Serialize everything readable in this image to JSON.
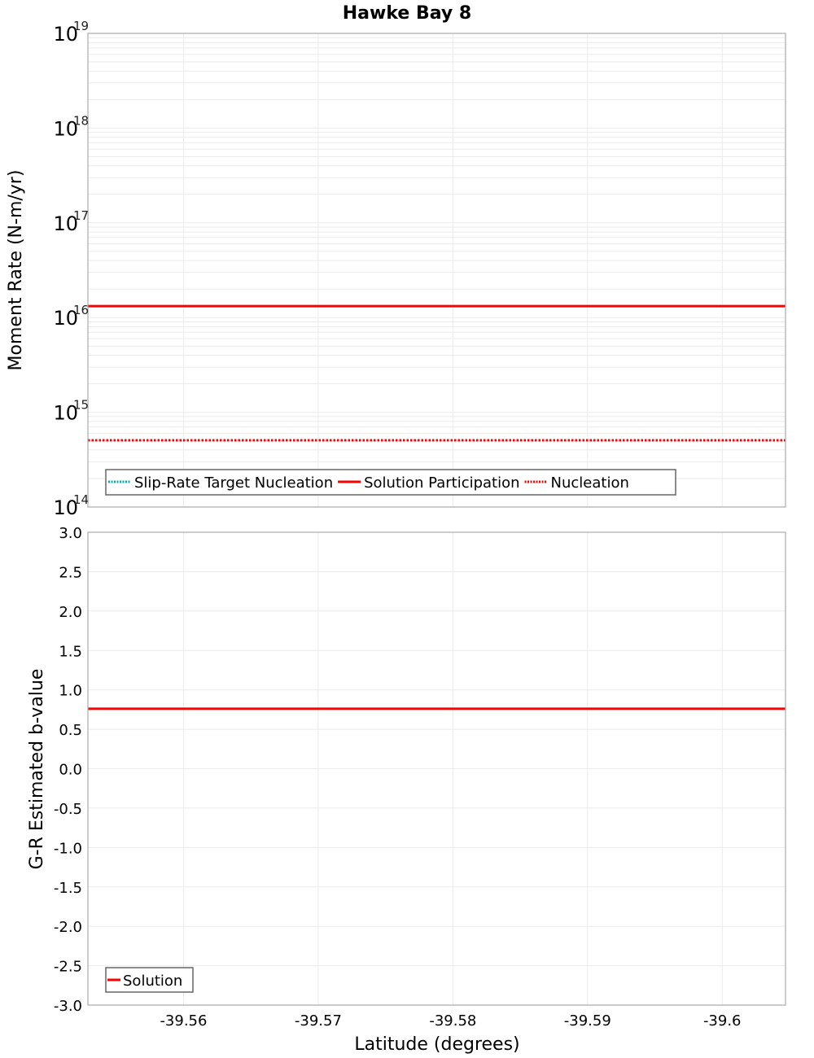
{
  "chart_data": [
    {
      "type": "line",
      "title": "Hawke Bay 8",
      "xlabel": "Latitude (degrees)",
      "ylabel": "Moment Rate (N-m/yr)",
      "yscale": "log",
      "ylim": [
        100000000000000.0,
        1e+19
      ],
      "xlim": [
        -39.5529,
        -39.6047
      ],
      "x_ticks": [
        -39.56,
        -39.57,
        -39.58,
        -39.59,
        -39.6
      ],
      "x_tick_labels": [
        "-39.56",
        "-39.57",
        "-39.58",
        "-39.59",
        "-39.6"
      ],
      "y_ticks": [
        100000000000000.0,
        1000000000000000.0,
        1e+16,
        1e+17,
        1e+18,
        1e+19
      ],
      "y_tick_labels": [
        {
          "base": "10",
          "exp": "14"
        },
        {
          "base": "10",
          "exp": "15"
        },
        {
          "base": "10",
          "exp": "16"
        },
        {
          "base": "10",
          "exp": "17"
        },
        {
          "base": "10",
          "exp": "18"
        },
        {
          "base": "10",
          "exp": "19"
        }
      ],
      "grid": true,
      "legend_position": "lower-left",
      "series": [
        {
          "name": "Slip-Rate Target Nucleation",
          "color": "#00b4b4",
          "style": "dotted",
          "x": [
            -39.5529,
            -39.5776,
            -39.6047
          ],
          "values": [
            506000000000000.0,
            506000000000000.0,
            506000000000000.0
          ]
        },
        {
          "name": "Solution Participation",
          "color": "#ff0000",
          "style": "solid",
          "x": [
            -39.5529,
            -39.5776,
            -39.6047
          ],
          "values": [
            1.32e+16,
            1.32e+16,
            1.32e+16
          ]
        },
        {
          "name": "Nucleation",
          "color": "#ff0000",
          "style": "dotted",
          "x": [
            -39.5529,
            -39.5776,
            -39.6047
          ],
          "values": [
            506000000000000.0,
            506000000000000.0,
            506000000000000.0
          ]
        }
      ]
    },
    {
      "type": "line",
      "title": "",
      "xlabel": "Latitude (degrees)",
      "ylabel": "G-R Estimated b-value",
      "ylim": [
        -3.0,
        3.0
      ],
      "xlim": [
        -39.5529,
        -39.6047
      ],
      "x_ticks": [
        -39.56,
        -39.57,
        -39.58,
        -39.59,
        -39.6
      ],
      "x_tick_labels": [
        "-39.56",
        "-39.57",
        "-39.58",
        "-39.59",
        "-39.6"
      ],
      "y_ticks": [
        3.0,
        2.5,
        2.0,
        1.5,
        1.0,
        0.5,
        0.0,
        -0.5,
        -1.0,
        -1.5,
        -2.0,
        -2.5,
        -3.0
      ],
      "y_tick_labels": [
        "3.0",
        "2.5",
        "2.0",
        "1.5",
        "1.0",
        "0.5",
        "0.0",
        "-0.5",
        "-1.0",
        "-1.5",
        "-2.0",
        "-2.5",
        "-3.0"
      ],
      "grid": true,
      "legend_position": "lower-left",
      "series": [
        {
          "name": "Solution",
          "color": "#ff0000",
          "style": "solid",
          "x": [
            -39.5529,
            -39.5776,
            -39.6047
          ],
          "values": [
            0.76,
            0.76,
            0.76
          ]
        }
      ]
    }
  ]
}
